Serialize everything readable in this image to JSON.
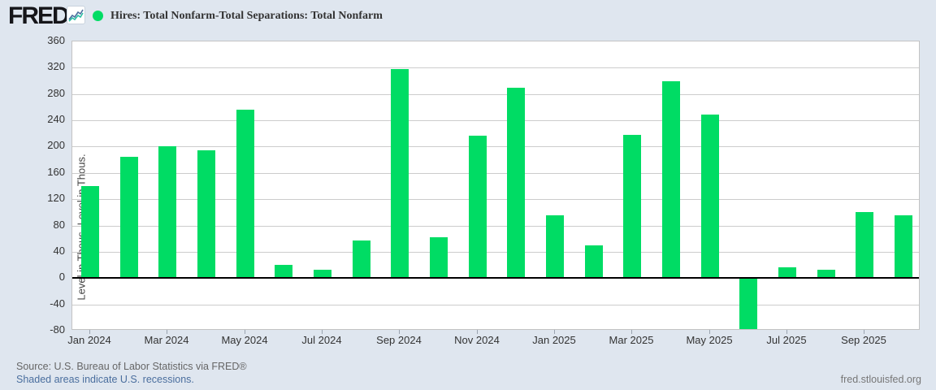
{
  "header": {
    "logo_text": "FRED",
    "logo_registered": "®",
    "legend_dot_color": "#00dc64",
    "series_label": "Hires: Total Nonfarm-Total Separations: Total Nonfarm"
  },
  "chart_data": {
    "type": "bar",
    "title": "Hires: Total Nonfarm-Total Separations: Total Nonfarm",
    "xlabel": "",
    "ylabel": "Level in Thous.-Level in Thous.",
    "ylim": [
      -80,
      360
    ],
    "ytick_step": 40,
    "yticks": [
      360,
      320,
      280,
      240,
      200,
      160,
      120,
      80,
      40,
      0,
      -40,
      -80
    ],
    "grid": true,
    "legend_position": "top-left",
    "bar_color": "#00dc64",
    "categories": [
      "Jan 2024",
      "Feb 2024",
      "Mar 2024",
      "Apr 2024",
      "May 2024",
      "Jun 2024",
      "Jul 2024",
      "Aug 2024",
      "Sep 2024",
      "Oct 2024",
      "Nov 2024",
      "Dec 2024",
      "Jan 2025",
      "Feb 2025",
      "Mar 2025",
      "Apr 2025",
      "May 2025",
      "Jun 2025",
      "Jul 2025",
      "Aug 2025",
      "Sep 2025",
      "Oct 2025"
    ],
    "values": [
      140,
      185,
      201,
      194,
      256,
      20,
      13,
      57,
      318,
      62,
      217,
      289,
      96,
      50,
      218,
      299,
      249,
      -78,
      16,
      13,
      101,
      96
    ],
    "xtick_labels": [
      "Jan 2024",
      "Mar 2024",
      "May 2024",
      "Jul 2024",
      "Sep 2024",
      "Nov 2024",
      "Jan 2025",
      "Mar 2025",
      "May 2025",
      "Jul 2025",
      "Sep 2025"
    ]
  },
  "footer": {
    "source_line": "Source: U.S. Bureau of Labor Statistics via FRED®",
    "recession_note": "Shaded areas indicate U.S. recessions.",
    "site_link": "fred.stlouisfed.org"
  },
  "colors": {
    "page_background": "#dfe6ef",
    "plot_background": "#ffffff",
    "gridline": "#cccccc",
    "zero_line": "#000000",
    "bar": "#00dc64",
    "axis_text": "#333333",
    "link_blue": "#4a6e9e",
    "source_gray": "#666666"
  }
}
